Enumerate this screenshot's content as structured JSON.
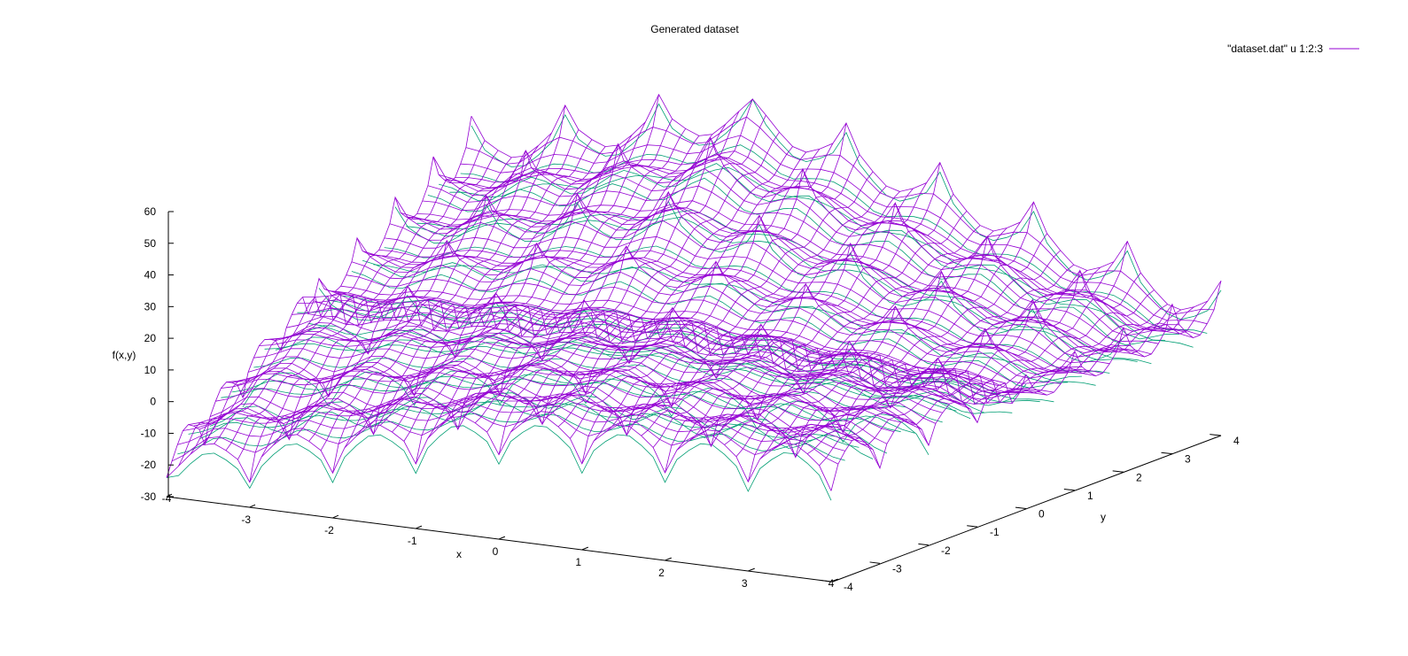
{
  "chart_data": {
    "type": "surface",
    "title": "Generated dataset",
    "xlabel": "x",
    "ylabel": "y",
    "zlabel": "f(x,y)",
    "xlim": [
      -4,
      4
    ],
    "ylim": [
      -4,
      4
    ],
    "zlim": [
      -30,
      60
    ],
    "x_ticks": [
      -4,
      -3,
      -2,
      -1,
      0,
      1,
      2,
      3,
      4
    ],
    "y_ticks": [
      -4,
      -3,
      -2,
      -1,
      0,
      1,
      2,
      3,
      4
    ],
    "z_ticks": [
      -30,
      -20,
      -10,
      0,
      10,
      20,
      30,
      40,
      50,
      60
    ],
    "grid": false,
    "legend": {
      "position": "top-right",
      "entries": [
        "\"dataset.dat\" u 1:2:3"
      ]
    },
    "series": [
      {
        "name": "\"dataset.dat\" u 1:2:3",
        "color": "#9400d3",
        "underside_color": "#009e73",
        "mesh": {
          "x_range": [
            -4,
            4
          ],
          "y_range": [
            -4,
            4
          ],
          "samples": 57,
          "cusp_spacing": 1,
          "rows": [
            {
              "y": -4,
              "z_at_x": [
                {
                  "x": -4,
                  "z": -22
                },
                {
                  "x": 0,
                  "z": 3
                },
                {
                  "x": 4,
                  "z": 5
                }
              ]
            },
            {
              "y": 0,
              "z_at_x": [
                {
                  "x": -4,
                  "z": 12
                },
                {
                  "x": 0,
                  "z": 16
                },
                {
                  "x": 4,
                  "z": 8
                }
              ]
            },
            {
              "y": 4,
              "z_at_x": [
                {
                  "x": -4,
                  "z": 38
                },
                {
                  "x": -1,
                  "z": 58
                },
                {
                  "x": 4,
                  "z": 12
                }
              ]
            }
          ],
          "peak_z": 58,
          "cusp_min_z": -24
        }
      }
    ]
  }
}
